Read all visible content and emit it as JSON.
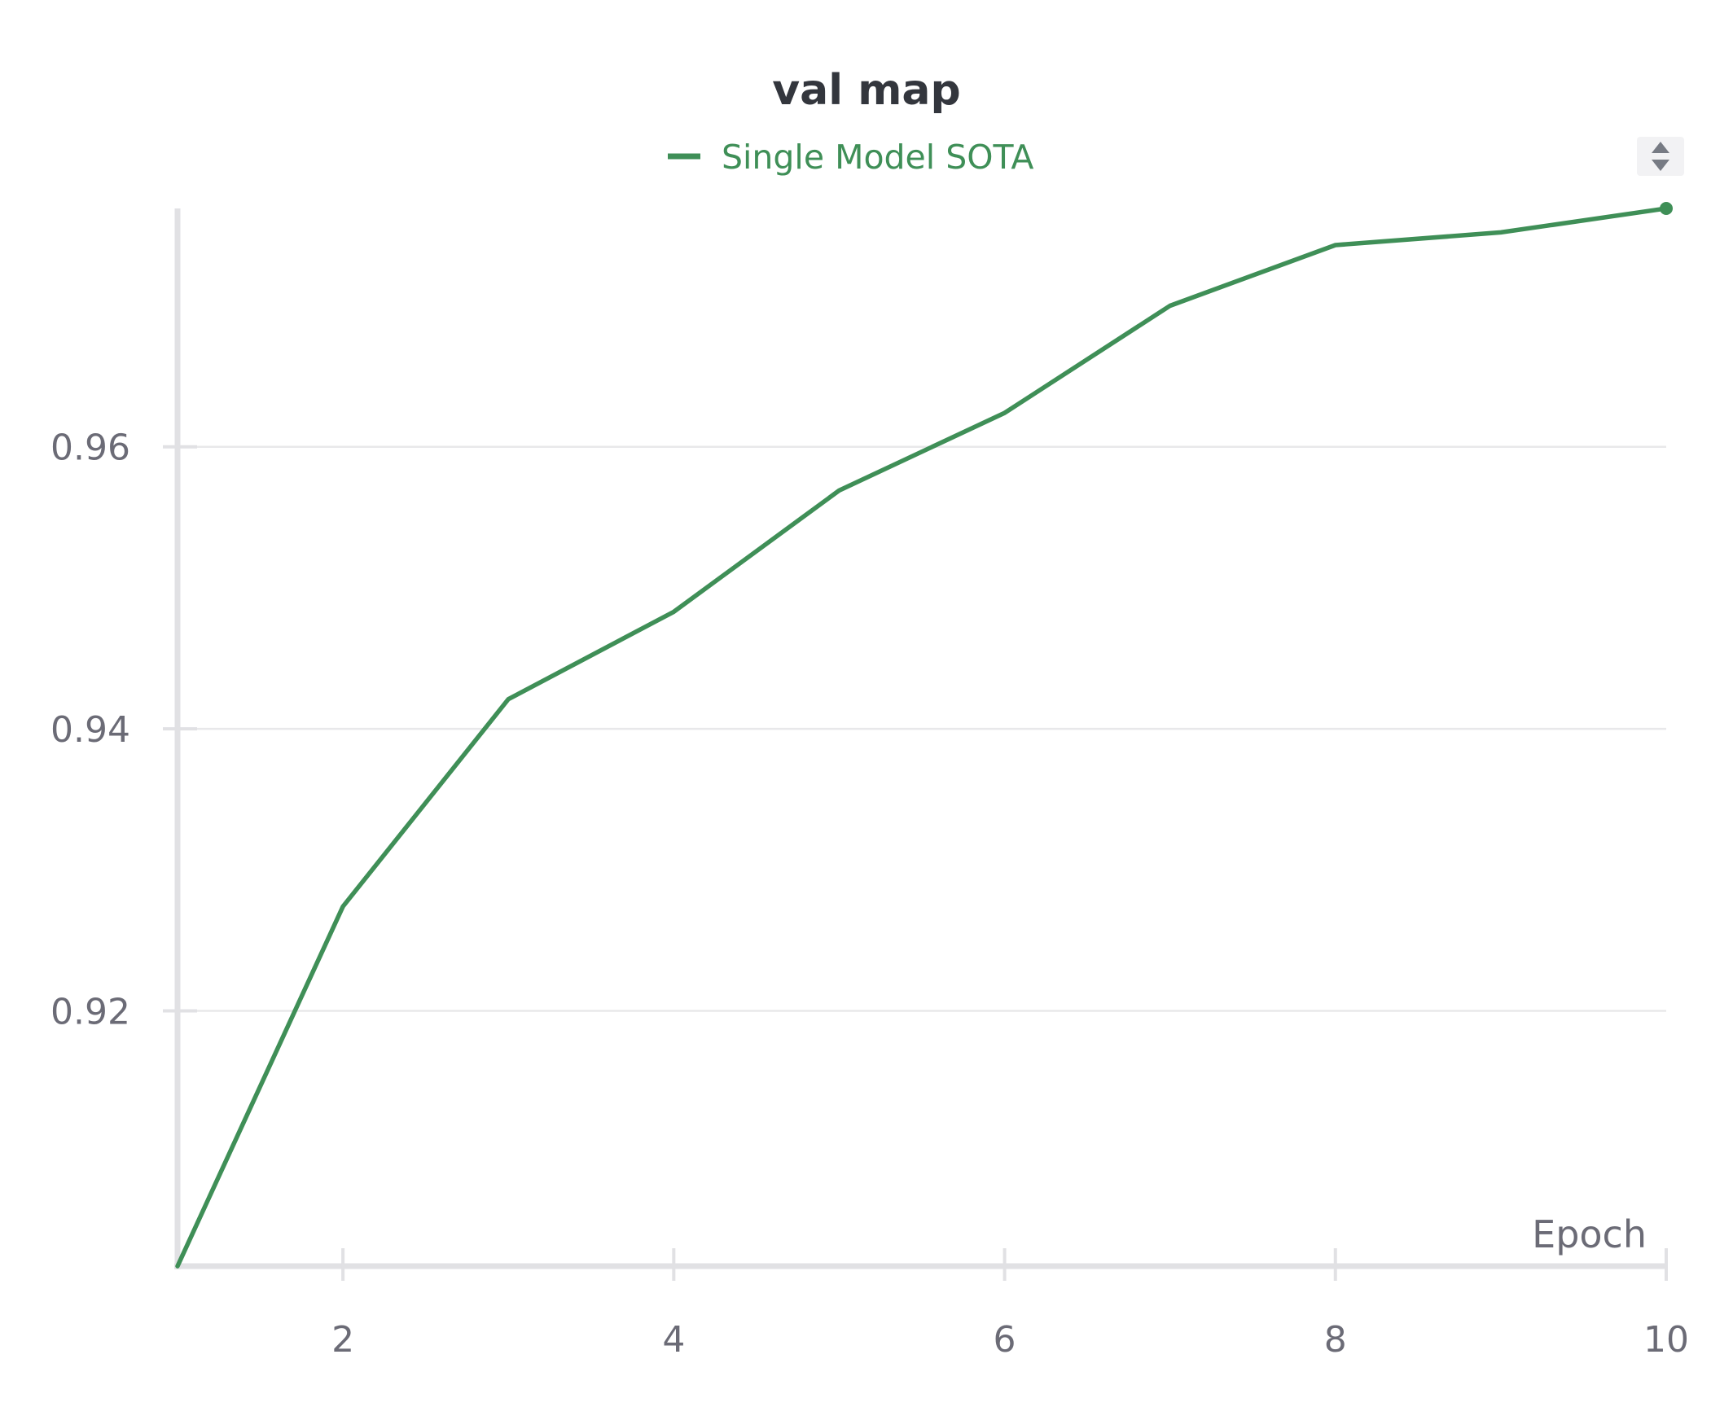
{
  "chart_data": {
    "type": "line",
    "title": "val map",
    "xlabel": "Epoch",
    "ylabel": "",
    "x": [
      1,
      2,
      3,
      4,
      5,
      6,
      7,
      8,
      9,
      10
    ],
    "xlim": [
      1,
      10
    ],
    "ylim": [
      0.9019,
      0.9769
    ],
    "xticks": [
      2,
      4,
      6,
      8,
      10
    ],
    "yticks": [
      0.92,
      0.94,
      0.96
    ],
    "ytick_labels": [
      "0.92",
      "0.94",
      "0.96"
    ],
    "xtick_labels": [
      "2",
      "4",
      "6",
      "8",
      "10"
    ],
    "grid": "horizontal",
    "legend_position": "top-center",
    "series": [
      {
        "name": "Single Model SOTA",
        "color": "#3f8f57",
        "values": [
          0.9019,
          0.9274,
          0.9421,
          0.9483,
          0.9569,
          0.9624,
          0.97,
          0.9743,
          0.9752,
          0.9769
        ]
      }
    ]
  },
  "legend_toggle_icon": "sort-arrows-icon"
}
